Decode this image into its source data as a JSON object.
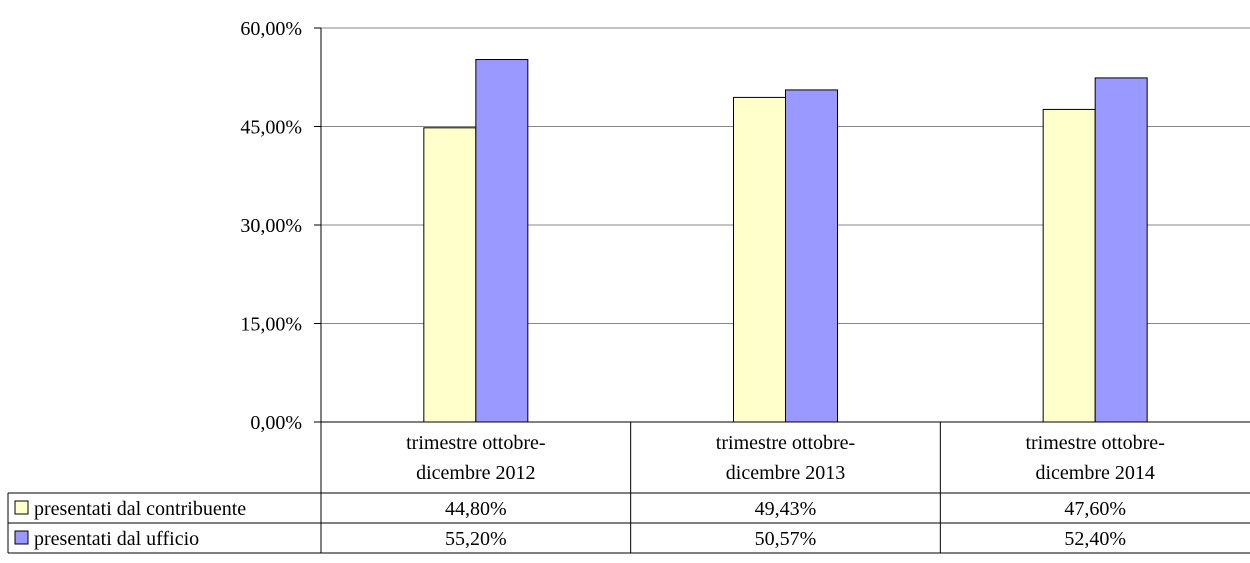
{
  "chart_data": {
    "type": "bar",
    "categories": [
      [
        "trimestre ottobre-",
        "dicembre 2012"
      ],
      [
        "trimestre ottobre-",
        "dicembre 2013"
      ],
      [
        "trimestre ottobre-",
        "dicembre 2014"
      ]
    ],
    "series": [
      {
        "name": "presentati dal contribuente",
        "values": [
          44.8,
          49.43,
          47.6
        ],
        "labels": [
          "44,80%",
          "49,43%",
          "47,60%"
        ],
        "color": "#FFFFCC"
      },
      {
        "name": "presentati dal ufficio",
        "values": [
          55.2,
          50.57,
          52.4
        ],
        "labels": [
          "55,20%",
          "50,57%",
          "52,40%"
        ],
        "color": "#9999FF"
      }
    ],
    "yticks": [
      {
        "value": 0,
        "label": "0,00%"
      },
      {
        "value": 15,
        "label": "15,00%"
      },
      {
        "value": 30,
        "label": "30,00%"
      },
      {
        "value": 45,
        "label": "45,00%"
      },
      {
        "value": 60,
        "label": "60,00%"
      }
    ],
    "ylim": [
      0,
      60
    ],
    "grid": true,
    "legend_placement": "data-table"
  }
}
